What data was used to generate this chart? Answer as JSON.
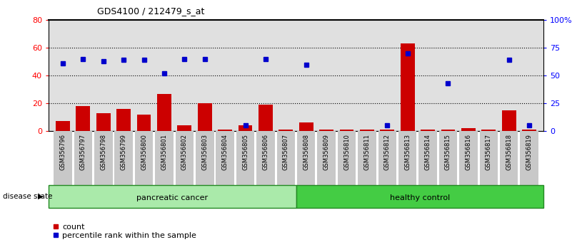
{
  "title": "GDS4100 / 212479_s_at",
  "samples": [
    "GSM356796",
    "GSM356797",
    "GSM356798",
    "GSM356799",
    "GSM356800",
    "GSM356801",
    "GSM356802",
    "GSM356803",
    "GSM356804",
    "GSM356805",
    "GSM356806",
    "GSM356807",
    "GSM356808",
    "GSM356809",
    "GSM356810",
    "GSM356811",
    "GSM356812",
    "GSM356813",
    "GSM356814",
    "GSM356815",
    "GSM356816",
    "GSM356817",
    "GSM356818",
    "GSM356819"
  ],
  "counts": [
    7,
    18,
    13,
    16,
    12,
    27,
    4,
    20,
    1,
    4,
    19,
    1,
    6,
    1,
    1,
    1,
    1,
    63,
    1,
    1,
    2,
    1,
    15,
    1
  ],
  "percentiles": [
    61,
    65,
    63,
    64,
    64,
    52,
    65,
    65,
    null,
    5,
    65,
    null,
    60,
    null,
    null,
    null,
    5,
    70,
    null,
    43,
    null,
    null,
    64,
    5
  ],
  "bar_color": "#CC0000",
  "dot_color": "#0000CC",
  "ylim_left": [
    0,
    80
  ],
  "ylim_right": [
    0,
    100
  ],
  "yticks_left": [
    0,
    20,
    40,
    60,
    80
  ],
  "yticks_right": [
    0,
    25,
    50,
    75,
    100
  ],
  "ytick_labels_right": [
    "0",
    "25",
    "50",
    "75",
    "100%"
  ],
  "grid_values": [
    20,
    40,
    60
  ],
  "plot_bg": "#E0E0E0",
  "pc_color": "#AAEAAA",
  "hc_color": "#44CC44",
  "band_edge": "#228822",
  "legend_items": [
    "count",
    "percentile rank within the sample"
  ],
  "disease_state_label": "disease state"
}
